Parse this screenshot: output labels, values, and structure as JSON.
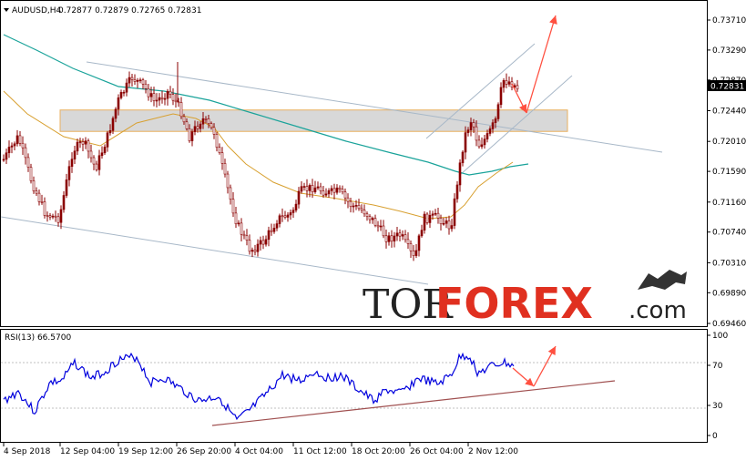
{
  "header": {
    "symbol": "AUDUSD,H4",
    "ohlc": "0.72877 0.72879 0.72765 0.72831"
  },
  "rsi_header": "RSI(13) 66.5700",
  "watermark": {
    "left": "TOR",
    "right": "FOREX",
    "suffix": ".com"
  },
  "colors": {
    "candles": "#8b0000",
    "ma_fast": "#d8a030",
    "ma_slow": "#1aa39a",
    "rsi": "#0000dd",
    "arrows": "#ff5040",
    "channel": "#a8b8c8",
    "zone_fill": "#d8d8d8",
    "zone_border": "#e8b060",
    "support": "#a05050"
  },
  "chart_data": [
    {
      "type": "candlestick",
      "symbol": "AUDUSD",
      "timeframe": "H4",
      "y_ticks": [
        "0.73710",
        "0.73290",
        "0.72870",
        "0.72440",
        "0.72010",
        "0.71590",
        "0.71160",
        "0.70740",
        "0.70310",
        "0.69890",
        "0.69460"
      ],
      "ylim": [
        0.6946,
        0.7395
      ],
      "current_price": "0.72831",
      "x_ticks": [
        "4 Sep 2018",
        "12 Sep 04:00",
        "19 Sep 12:00",
        "26 Sep 20:00",
        "4 Oct 04:00",
        "11 Oct 12:00",
        "18 Oct 20:00",
        "26 Oct 04:00",
        "2 Nov 12:00"
      ],
      "resistance_zone": [
        0.7215,
        0.7245
      ],
      "forecast": "Rise to ~0.7375 after a pullback to ~0.7245"
    },
    {
      "type": "line",
      "indicator": "RSI(13)",
      "value": 66.57,
      "y_ticks": [
        "100",
        "70",
        "30",
        "0"
      ],
      "ylim": [
        0,
        100
      ]
    }
  ]
}
